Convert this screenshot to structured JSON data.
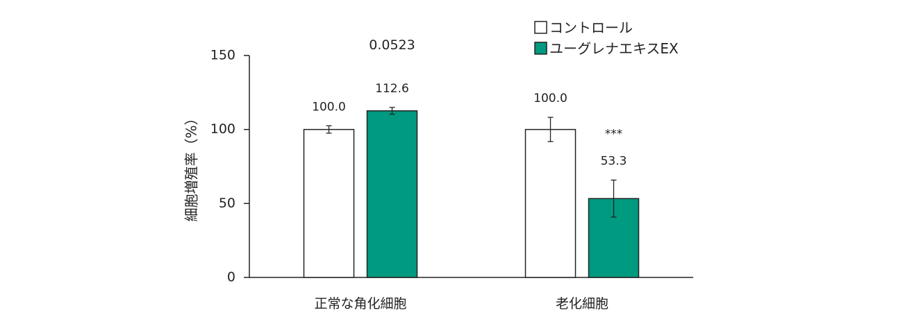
{
  "chart_data": {
    "type": "bar",
    "title": "",
    "xlabel": "",
    "ylabel": "細胞増殖率（%）",
    "ylim": [
      0,
      150
    ],
    "yticks": [
      0,
      50,
      100,
      150
    ],
    "grid": false,
    "legend_position": "top-right",
    "categories": [
      "正常な角化細胞",
      "老化細胞"
    ],
    "series": [
      {
        "name": "コントロール",
        "color": "#ffffff",
        "values": [
          100.0,
          100.0
        ],
        "errors": [
          2.5,
          8.2
        ],
        "labels": [
          "100.0",
          "100.0"
        ]
      },
      {
        "name": "ユーグレナエキスEX",
        "color": "#009a80",
        "values": [
          112.6,
          53.3
        ],
        "errors": [
          2.3,
          12.5
        ],
        "labels": [
          "112.6",
          "53.3"
        ]
      }
    ],
    "annotations": [
      {
        "category": "正常な角化細胞",
        "series": "ユーグレナエキスEX",
        "text": "0.0523"
      },
      {
        "category": "老化細胞",
        "series": "ユーグレナエキスEX",
        "text": "***"
      }
    ]
  },
  "legend": {
    "items": [
      {
        "label": "コントロール",
        "color": "#ffffff"
      },
      {
        "label": "ユーグレナエキスEX",
        "color": "#009a80"
      }
    ]
  }
}
